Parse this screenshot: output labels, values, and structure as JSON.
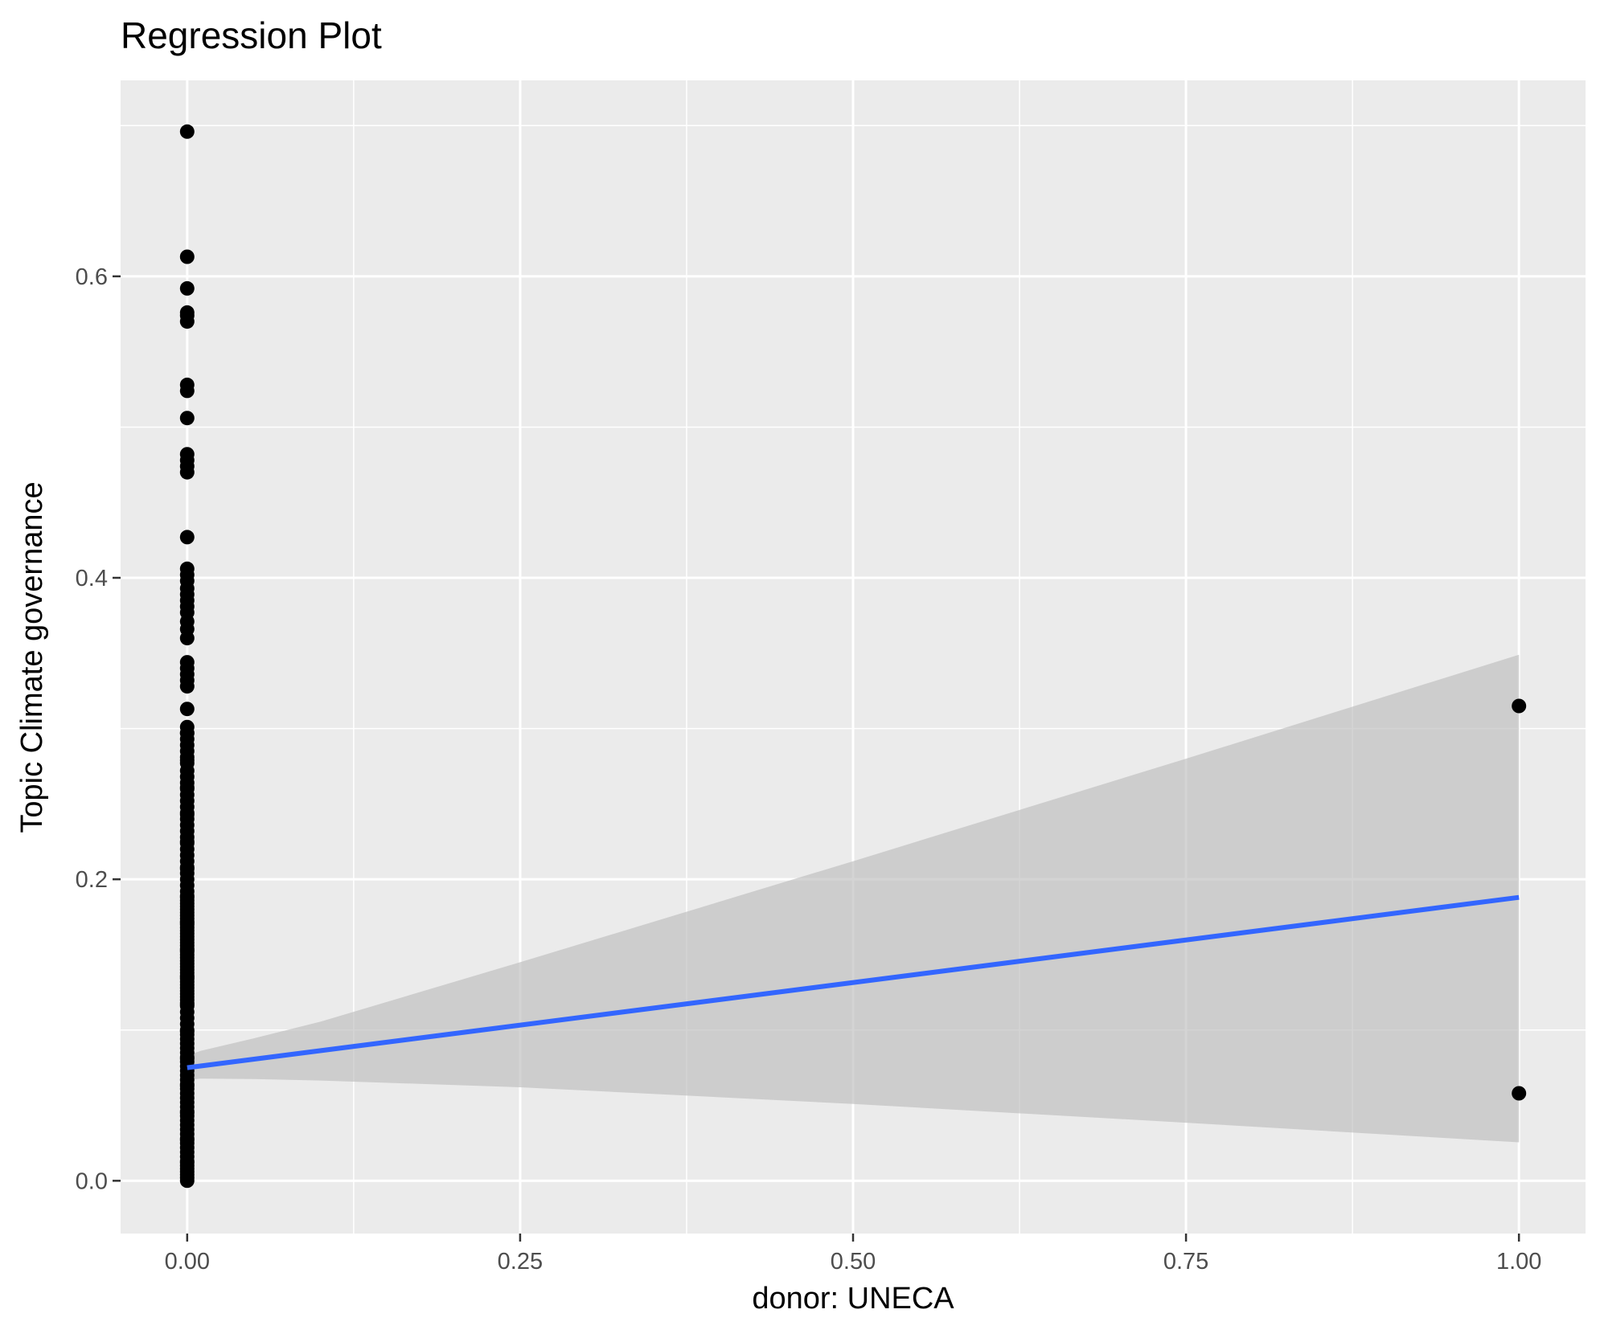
{
  "chart_data": {
    "type": "scatter",
    "title": "Regression Plot",
    "xlabel": "donor: UNECA",
    "ylabel": "Topic Climate governance",
    "xlim": [
      -0.05,
      1.05
    ],
    "ylim": [
      -0.035,
      0.73
    ],
    "x_ticks": [
      0,
      0.25,
      0.5,
      0.75,
      1
    ],
    "x_tick_labels": [
      "0.00",
      "0.25",
      "0.50",
      "0.75",
      "1.00"
    ],
    "y_ticks": [
      0,
      0.2,
      0.4,
      0.6
    ],
    "y_tick_labels": [
      "0.0",
      "0.2",
      "0.4",
      "0.6"
    ],
    "grid": true,
    "legend": "none",
    "colors": {
      "panel": "#ebebeb",
      "grid": "#ffffff",
      "points": "#000000",
      "fit_line": "#3366ff",
      "ribbon": "#bdbdbd"
    },
    "points_x": [
      0,
      0,
      0,
      0,
      0,
      0,
      0,
      0,
      0,
      0,
      0,
      0,
      0,
      0,
      0,
      0,
      0,
      0,
      0,
      0,
      0,
      0,
      0,
      0,
      0,
      0,
      0,
      0,
      0,
      0,
      0,
      0,
      0,
      0,
      0,
      0,
      0,
      0,
      0,
      0,
      0,
      0,
      0,
      0,
      0,
      0,
      0,
      0,
      0,
      0,
      0,
      0,
      0,
      0,
      0,
      0,
      0,
      0,
      0,
      0,
      0,
      0,
      0,
      0,
      0,
      0,
      0,
      0,
      0,
      0,
      0,
      0,
      0,
      0,
      0,
      0,
      0,
      0,
      0,
      0,
      0,
      0,
      0,
      0,
      0,
      0,
      0,
      0,
      0,
      0,
      0,
      0,
      0,
      0,
      0,
      0,
      0,
      0,
      0,
      0,
      0,
      0,
      0,
      0,
      0,
      0,
      0,
      0,
      0,
      0,
      0,
      0,
      0,
      0,
      0,
      0,
      0,
      0,
      0,
      0,
      0,
      0,
      0,
      0,
      0,
      0,
      0,
      0,
      0,
      0,
      0,
      0,
      0,
      0,
      0,
      0,
      0,
      0,
      0,
      0,
      0,
      0,
      0,
      0,
      0,
      0,
      0,
      0,
      0,
      0,
      0,
      0,
      1,
      1
    ],
    "points_y": [
      0.696,
      0.613,
      0.592,
      0.576,
      0.574,
      0.57,
      0.528,
      0.524,
      0.506,
      0.482,
      0.478,
      0.474,
      0.47,
      0.427,
      0.406,
      0.402,
      0.398,
      0.393,
      0.389,
      0.385,
      0.381,
      0.377,
      0.371,
      0.366,
      0.36,
      0.344,
      0.34,
      0.336,
      0.332,
      0.328,
      0.313,
      0.301,
      0.297,
      0.293,
      0.289,
      0.285,
      0.281,
      0.277,
      0.272,
      0.268,
      0.264,
      0.26,
      0.256,
      0.252,
      0.248,
      0.244,
      0.24,
      0.236,
      0.232,
      0.228,
      0.224,
      0.22,
      0.216,
      0.212,
      0.208,
      0.204,
      0.2,
      0.196,
      0.192,
      0.188,
      0.184,
      0.18,
      0.176,
      0.172,
      0.168,
      0.164,
      0.16,
      0.156,
      0.152,
      0.148,
      0.144,
      0.14,
      0.136,
      0.132,
      0.128,
      0.124,
      0.12,
      0.116,
      0.112,
      0.108,
      0.104,
      0.1,
      0.097,
      0.094,
      0.091,
      0.088,
      0.085,
      0.082,
      0.079,
      0.076,
      0.073,
      0.07,
      0.067,
      0.064,
      0.061,
      0.058,
      0.055,
      0.052,
      0.049,
      0.046,
      0.043,
      0.04,
      0.037,
      0.034,
      0.031,
      0.028,
      0.025,
      0.022,
      0.019,
      0.016,
      0.013,
      0.01,
      0.008,
      0.006,
      0.004,
      0.002,
      0.0,
      0.012,
      0.027,
      0.045,
      0.063,
      0.081,
      0.099,
      0.117,
      0.135,
      0.153,
      0.171,
      0.189,
      0.207,
      0.225,
      0.243,
      0.261,
      0.279,
      0.297,
      0.118,
      0.122,
      0.126,
      0.13,
      0.134,
      0.138,
      0.142,
      0.146,
      0.15,
      0.154,
      0.158,
      0.162,
      0.166,
      0.17,
      0.174,
      0.178,
      0.182,
      0.186,
      0.315,
      0.058
    ],
    "fit_line": {
      "x": [
        0,
        1
      ],
      "y": [
        0.075,
        0.188
      ]
    },
    "confidence_band": {
      "x": [
        0,
        0.01,
        0.05,
        0.1,
        0.25,
        0.5,
        0.75,
        1
      ],
      "lower": [
        0.067,
        0.0678,
        0.0675,
        0.0665,
        0.062,
        0.051,
        0.0385,
        0.0255
      ],
      "upper": [
        0.083,
        0.0862,
        0.0945,
        0.1055,
        0.145,
        0.212,
        0.28,
        0.349
      ]
    }
  }
}
